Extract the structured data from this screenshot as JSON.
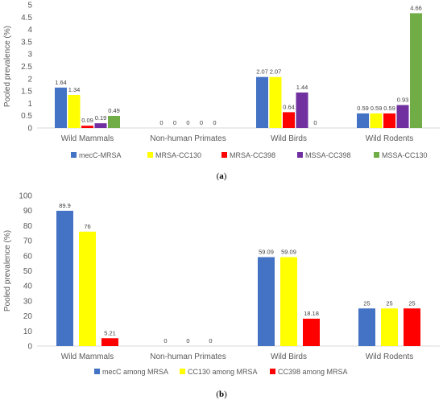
{
  "chart_data": [
    {
      "type": "bar",
      "panel_label": "a",
      "title": "",
      "xlabel": "",
      "ylabel": "Pooled prevalence (%)",
      "ylim": [
        0,
        5
      ],
      "yticks": [
        "0",
        "0.5",
        "1",
        "1.5",
        "2",
        "2.5",
        "3",
        "3.5",
        "4",
        "4.5",
        "5"
      ],
      "categories": [
        "Wild Mammals",
        "Non-human Primates",
        "Wild Birds",
        "Wild Rodents"
      ],
      "series": [
        {
          "name": "mecC-MRSA",
          "color": "#4472C4",
          "values": [
            1.64,
            0,
            2.07,
            0.59
          ],
          "labels": [
            "1.64",
            "0",
            "2.07",
            "0.59"
          ]
        },
        {
          "name": "MRSA-CC130",
          "color": "#FFFF00",
          "values": [
            1.34,
            0,
            2.07,
            0.59
          ],
          "labels": [
            "1.34",
            "0",
            "2.07",
            "0.59"
          ]
        },
        {
          "name": "MRSA-CC398",
          "color": "#FF0000",
          "values": [
            0.09,
            0,
            0.64,
            0.59
          ],
          "labels": [
            "0.09",
            "0",
            "0.64",
            "0.59"
          ]
        },
        {
          "name": "MSSA-CC398",
          "color": "#7030A0",
          "values": [
            0.19,
            0,
            1.44,
            0.93
          ],
          "labels": [
            "0.19",
            "0",
            "1.44",
            "0.93"
          ]
        },
        {
          "name": "MSSA-CC130",
          "color": "#70AD47",
          "values": [
            0.49,
            0,
            0,
            4.66
          ],
          "labels": [
            "0.49",
            "0",
            "0",
            "4.66"
          ]
        }
      ],
      "grid": false,
      "legend": "bottom"
    },
    {
      "type": "bar",
      "panel_label": "b",
      "title": "",
      "xlabel": "",
      "ylabel": "Pooled prevalence (%)",
      "ylim": [
        0,
        100
      ],
      "yticks": [
        "0",
        "10",
        "20",
        "30",
        "40",
        "50",
        "60",
        "70",
        "80",
        "90",
        "100"
      ],
      "categories": [
        "Wild Mammals",
        "Non-human Primates",
        "Wild Birds",
        "Wild Rodents"
      ],
      "series": [
        {
          "name": "mecC among MRSA",
          "color": "#4472C4",
          "values": [
            89.9,
            0,
            59.09,
            25
          ],
          "labels": [
            "89.9",
            "0",
            "59.09",
            "25"
          ]
        },
        {
          "name": "CC130 among MRSA",
          "color": "#FFFF00",
          "values": [
            76,
            0,
            59.09,
            25
          ],
          "labels": [
            "76",
            "0",
            "59.09",
            "25"
          ]
        },
        {
          "name": "CC398 among MRSA",
          "color": "#FF0000",
          "values": [
            5.21,
            0,
            18.18,
            25
          ],
          "labels": [
            "5.21",
            "0",
            "18.18",
            "25"
          ]
        }
      ],
      "grid": false,
      "legend": "bottom"
    }
  ]
}
